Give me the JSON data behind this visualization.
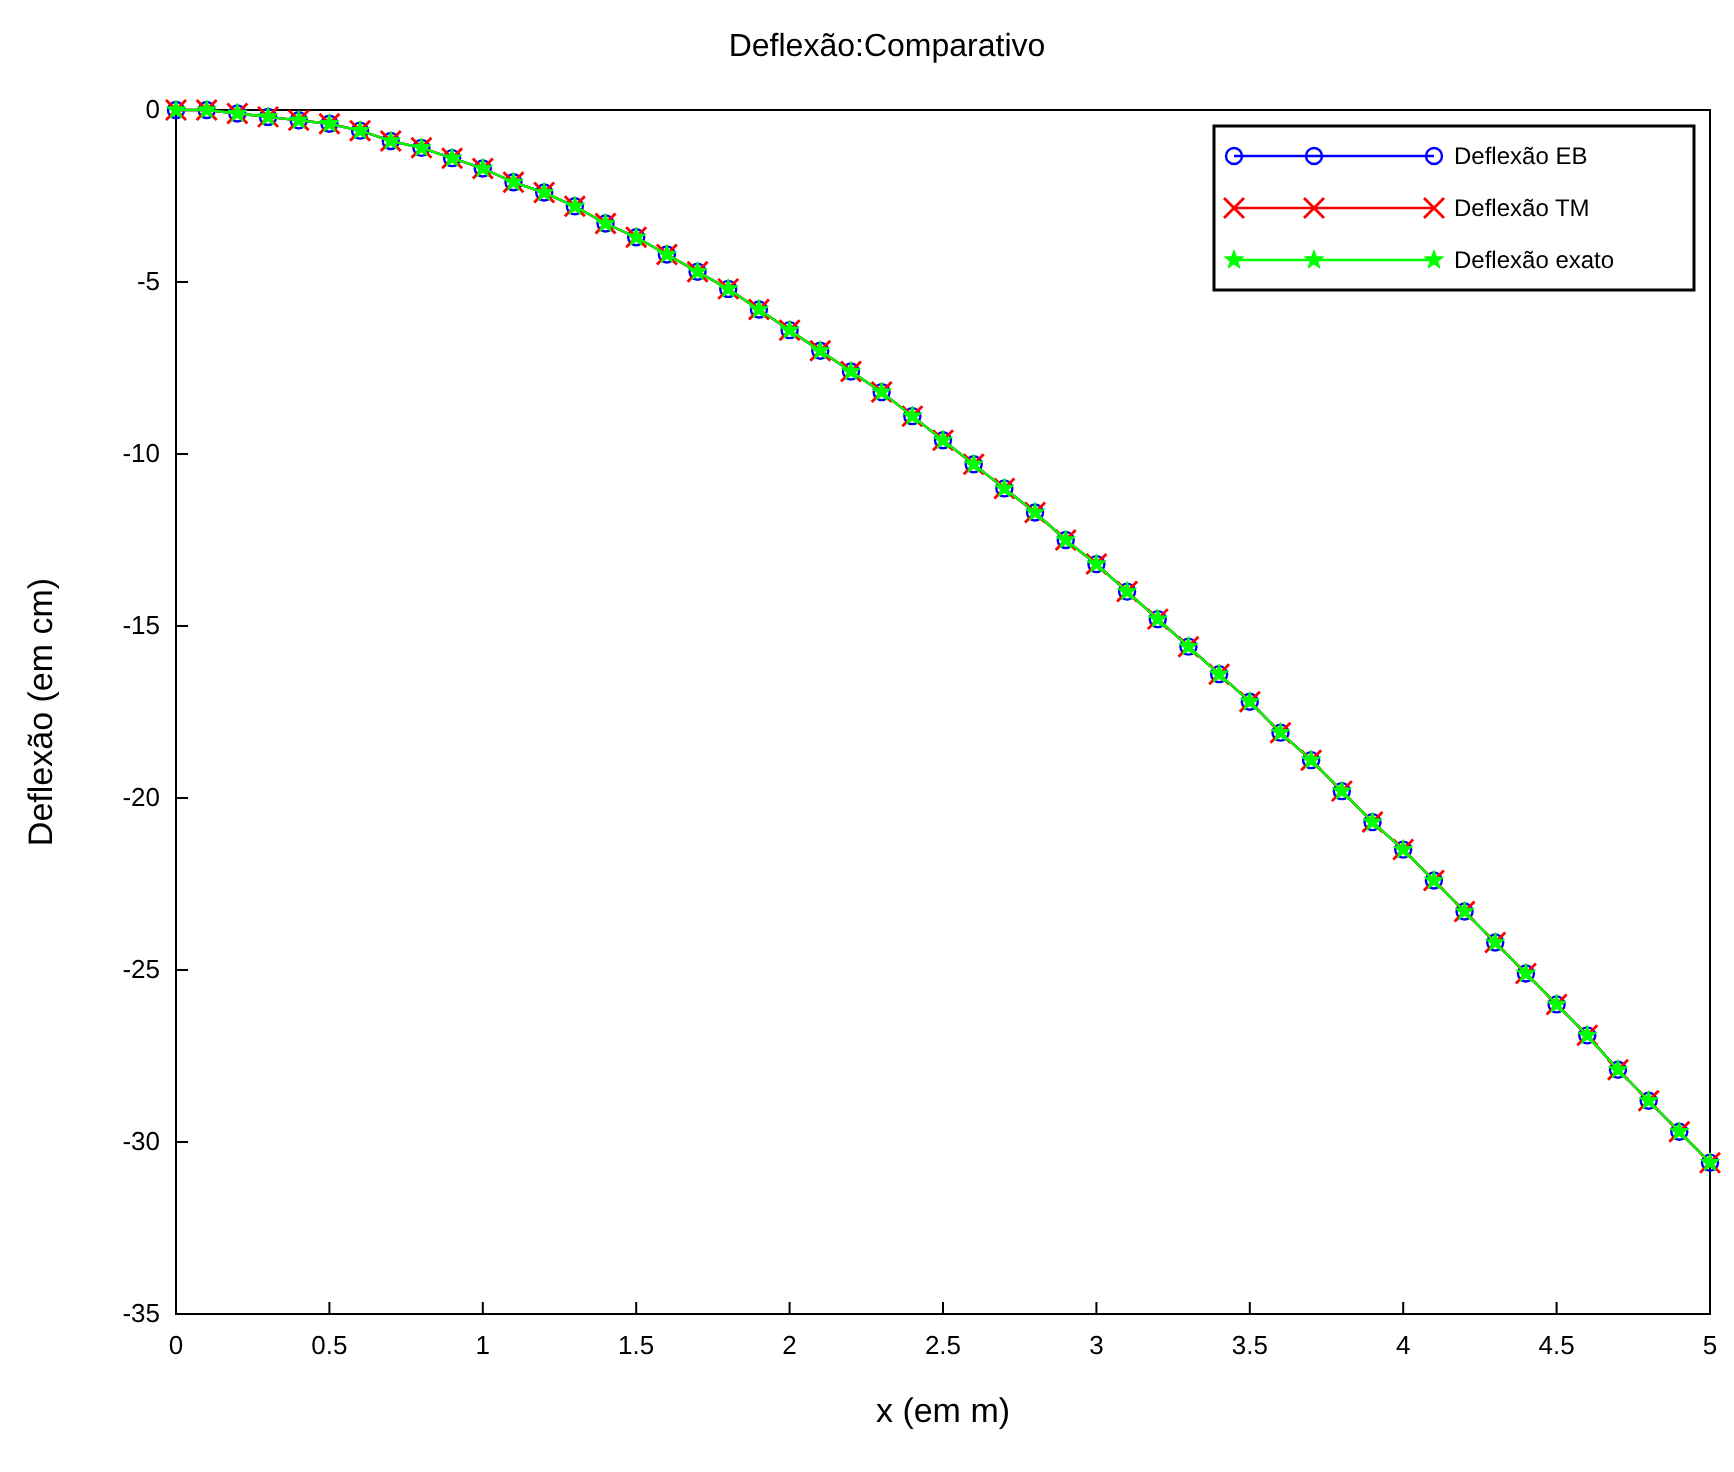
{
  "chart_data": {
    "type": "line",
    "title": "Deflexão:Comparativo",
    "xlabel": "x (em m)",
    "ylabel": "Deflexão (em cm)",
    "x": [
      0,
      0.1,
      0.2,
      0.3,
      0.4,
      0.5,
      0.6,
      0.7,
      0.8,
      0.9,
      1,
      1.1,
      1.2,
      1.3,
      1.4,
      1.5,
      1.6,
      1.7,
      1.8,
      1.9,
      2,
      2.1,
      2.2,
      2.3,
      2.4,
      2.5,
      2.6,
      2.7,
      2.8,
      2.9,
      3,
      3.1,
      3.2,
      3.3,
      3.4,
      3.5,
      3.6,
      3.7,
      3.8,
      3.9,
      4,
      4.1,
      4.2,
      4.3,
      4.4,
      4.5,
      4.6,
      4.7,
      4.8,
      4.9,
      5
    ],
    "series": [
      {
        "name": "Deflexão EB",
        "color": "#0000ff",
        "marker": "circle",
        "values": [
          0,
          0,
          -0.1,
          -0.2,
          -0.3,
          -0.4,
          -0.6,
          -0.9,
          -1.1,
          -1.4,
          -1.7,
          -2.1,
          -2.4,
          -2.8,
          -3.3,
          -3.7,
          -4.2,
          -4.7,
          -5.2,
          -5.8,
          -6.4,
          -7,
          -7.6,
          -8.2,
          -8.9,
          -9.6,
          -10.3,
          -11,
          -11.7,
          -12.5,
          -13.2,
          -14,
          -14.8,
          -15.6,
          -16.4,
          -17.2,
          -18.1,
          -18.9,
          -19.8,
          -20.7,
          -21.5,
          -22.4,
          -23.3,
          -24.2,
          -25.1,
          -26,
          -26.9,
          -27.9,
          -28.8,
          -29.7,
          -30.6
        ]
      },
      {
        "name": "Deflexão TM",
        "color": "#ff0000",
        "marker": "cross",
        "values": [
          0,
          0,
          -0.1,
          -0.2,
          -0.3,
          -0.4,
          -0.6,
          -0.9,
          -1.1,
          -1.4,
          -1.7,
          -2.1,
          -2.4,
          -2.8,
          -3.3,
          -3.7,
          -4.2,
          -4.7,
          -5.2,
          -5.8,
          -6.4,
          -7,
          -7.6,
          -8.2,
          -8.9,
          -9.6,
          -10.3,
          -11,
          -11.7,
          -12.5,
          -13.2,
          -14,
          -14.8,
          -15.6,
          -16.4,
          -17.2,
          -18.1,
          -18.9,
          -19.8,
          -20.7,
          -21.5,
          -22.4,
          -23.3,
          -24.2,
          -25.1,
          -26,
          -26.9,
          -27.9,
          -28.8,
          -29.7,
          -30.6
        ]
      },
      {
        "name": "Deflexão exato",
        "color": "#00ff00",
        "marker": "star",
        "values": [
          0,
          0,
          -0.1,
          -0.2,
          -0.3,
          -0.4,
          -0.6,
          -0.9,
          -1.1,
          -1.4,
          -1.7,
          -2.1,
          -2.4,
          -2.8,
          -3.3,
          -3.7,
          -4.2,
          -4.7,
          -5.2,
          -5.8,
          -6.4,
          -7,
          -7.6,
          -8.2,
          -8.9,
          -9.6,
          -10.3,
          -11,
          -11.7,
          -12.5,
          -13.2,
          -14,
          -14.8,
          -15.6,
          -16.4,
          -17.2,
          -18.1,
          -18.9,
          -19.8,
          -20.7,
          -21.5,
          -22.4,
          -23.3,
          -24.2,
          -25.1,
          -26,
          -26.9,
          -27.9,
          -28.8,
          -29.7,
          -30.6
        ]
      }
    ],
    "xlim": [
      0,
      5
    ],
    "ylim": [
      -35,
      0
    ],
    "xticks": [
      0,
      0.5,
      1,
      1.5,
      2,
      2.5,
      3,
      3.5,
      4,
      4.5,
      5
    ],
    "yticks": [
      0,
      -5,
      -10,
      -15,
      -20,
      -25,
      -30,
      -35
    ],
    "grid": false,
    "legend": "top right"
  }
}
